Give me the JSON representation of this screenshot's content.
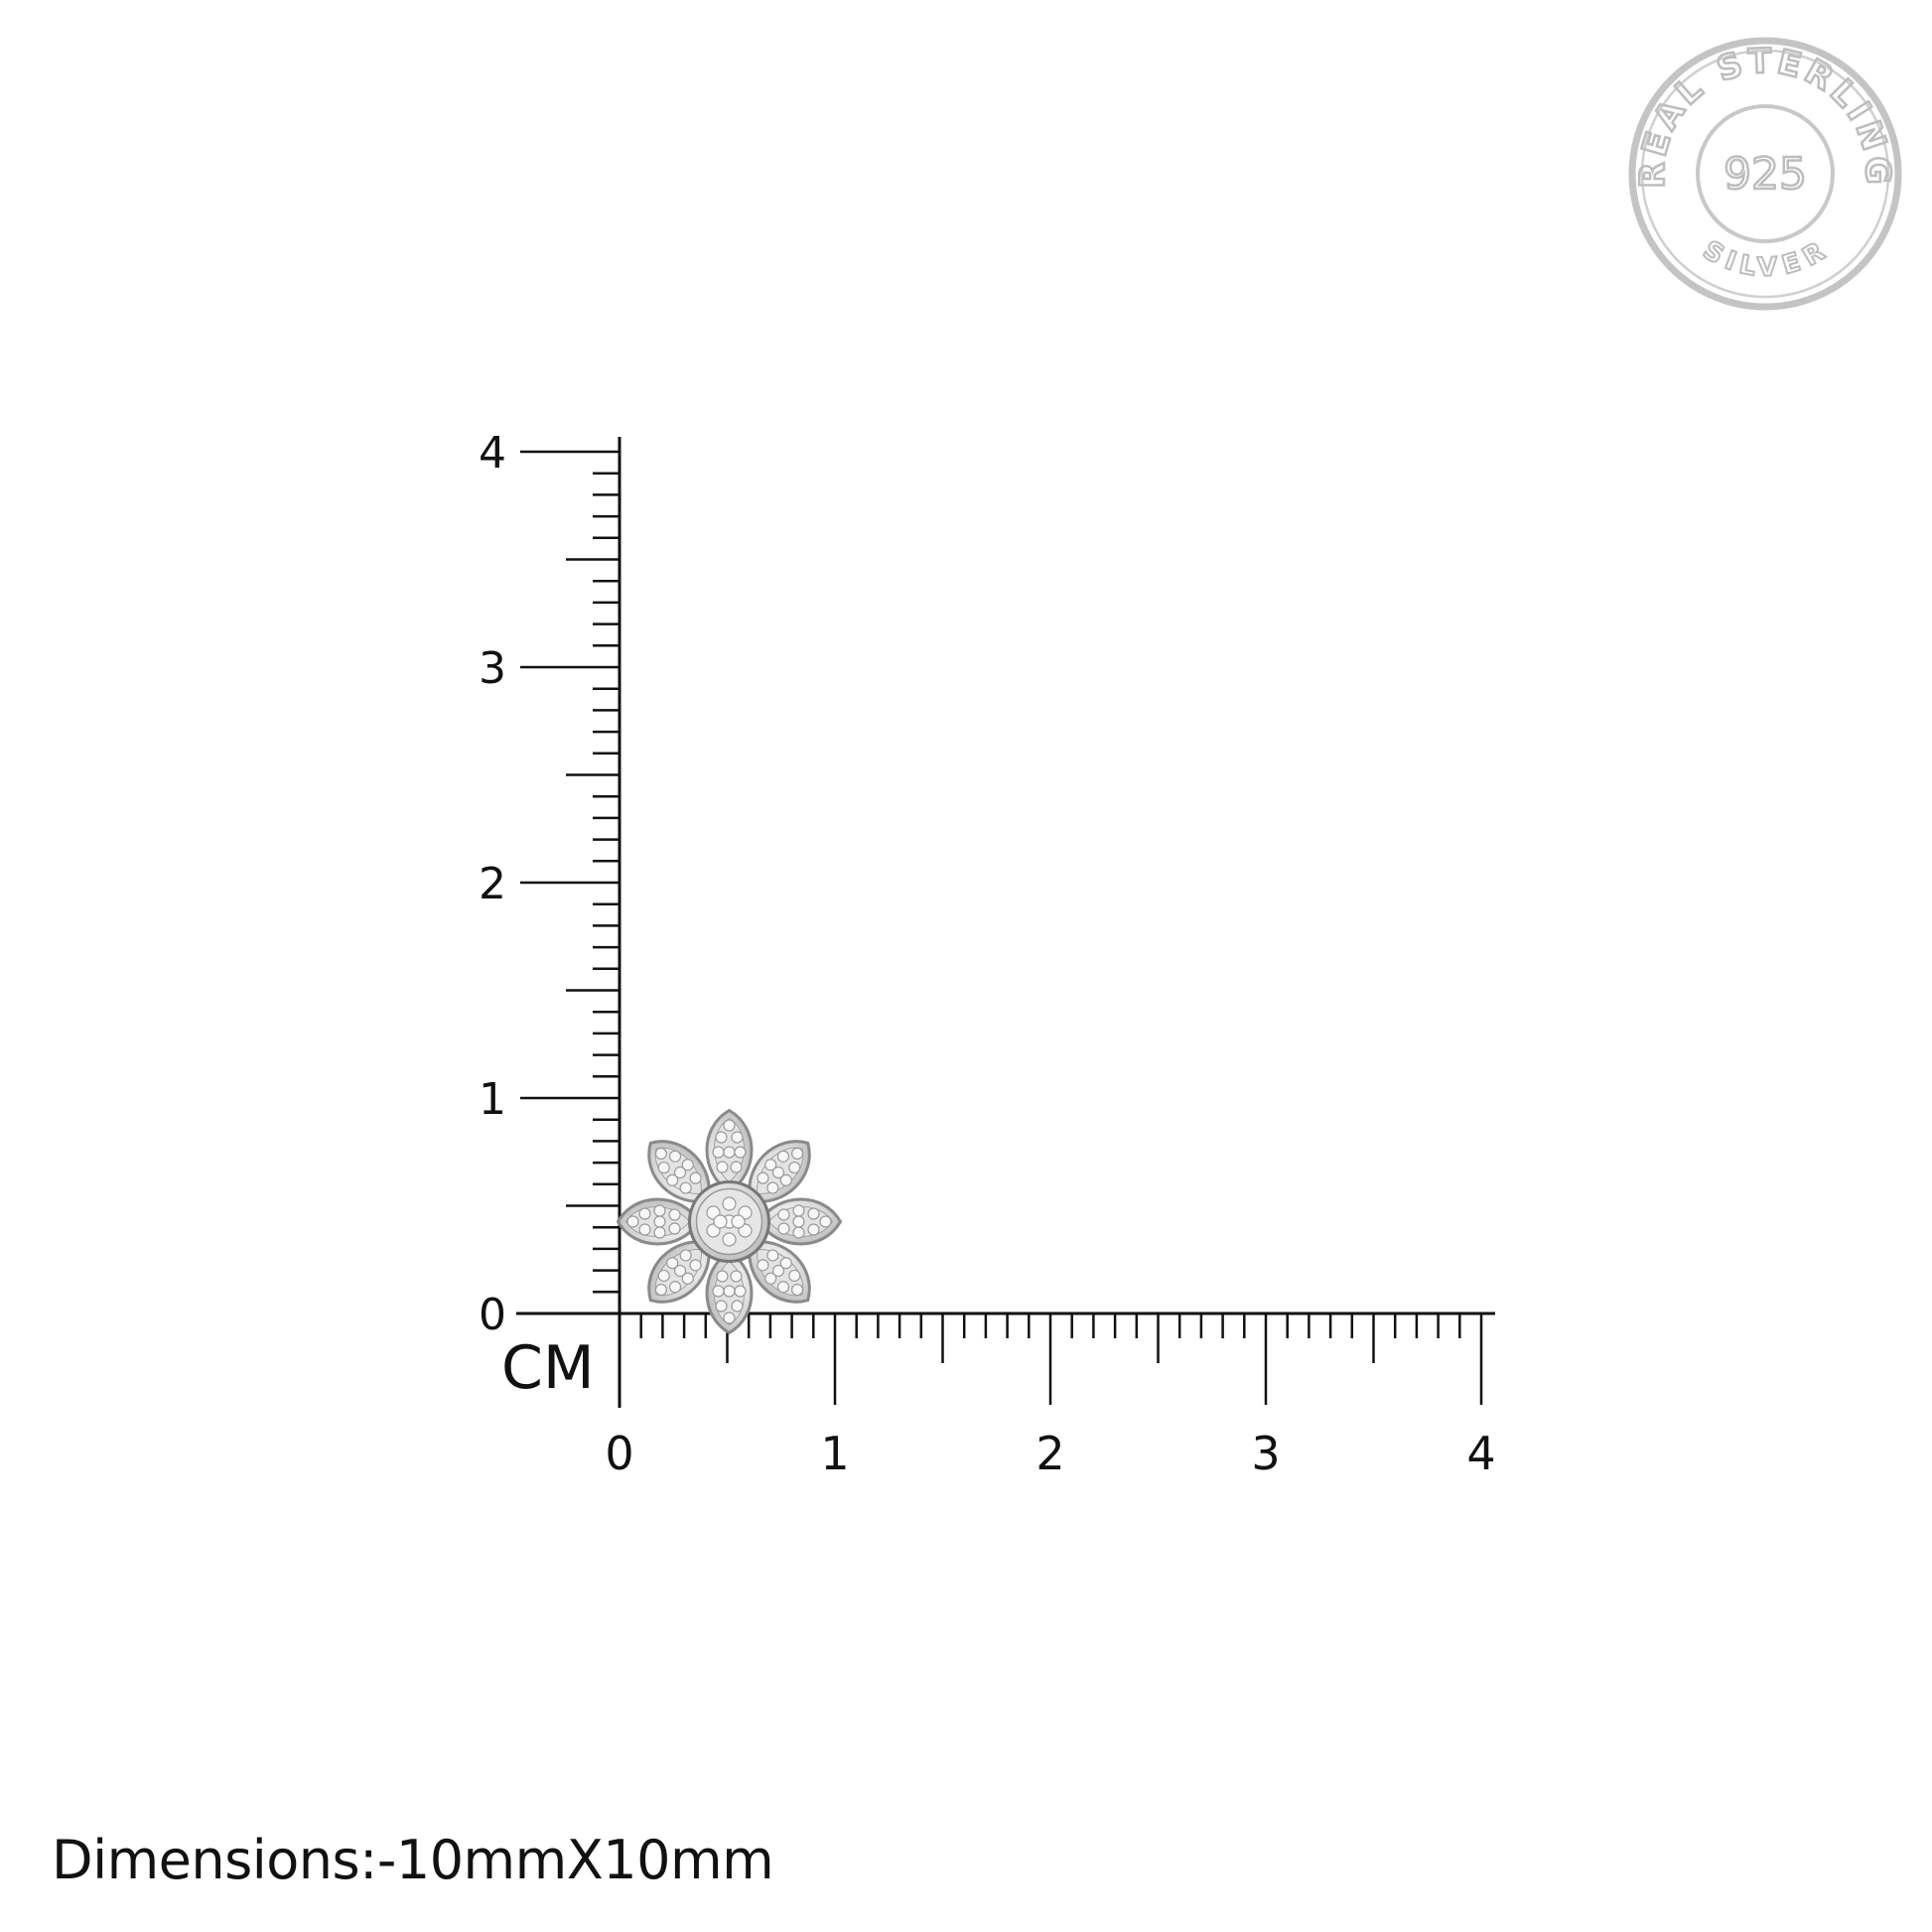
{
  "ruler": {
    "unit_label": "CM",
    "x_ticks": [
      "0",
      "1",
      "2",
      "3",
      "4"
    ],
    "y_ticks": [
      "0",
      "1",
      "2",
      "3",
      "4"
    ],
    "subdivisions_per_unit": 10,
    "range_cm": [
      0,
      4
    ]
  },
  "product": {
    "name_icon": "flower-stud-earring",
    "width_cm": 1.0,
    "height_cm": 1.0
  },
  "stamp": {
    "top_text": "REAL STERLING",
    "center_text": "925",
    "bottom_text": "SILVER",
    "color": "#bdbdbd"
  },
  "caption": {
    "dimensions": "Dimensions:-10mmX10mm"
  }
}
